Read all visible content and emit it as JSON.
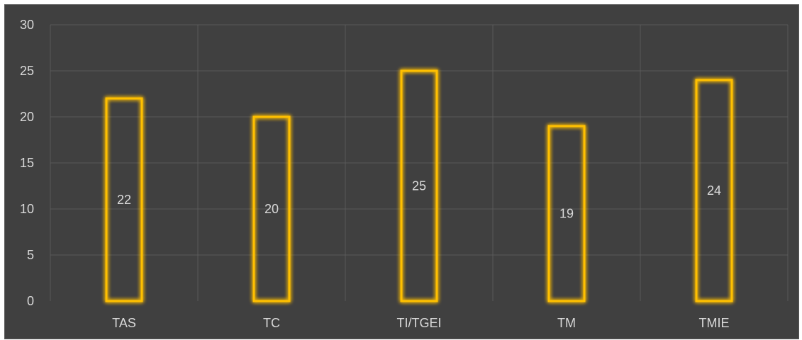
{
  "chart_data": {
    "type": "bar",
    "title": "",
    "xlabel": "",
    "ylabel": "",
    "categories": [
      "TAS",
      "TC",
      "TI/TGEI",
      "TM",
      "TMIE"
    ],
    "values": [
      22,
      20,
      25,
      19,
      24
    ],
    "data_labels": [
      "22",
      "20",
      "25",
      "19",
      "24"
    ],
    "ylim": [
      0,
      30
    ],
    "yticks": [
      0,
      5,
      10,
      15,
      20,
      25,
      30
    ],
    "grid": true,
    "legend": "none",
    "colors": {
      "background": "#404040",
      "bar_outline": "#ffc000",
      "bar_glow": "#c9a100",
      "gridline": "#595959",
      "text": "#d9d9d9"
    }
  }
}
